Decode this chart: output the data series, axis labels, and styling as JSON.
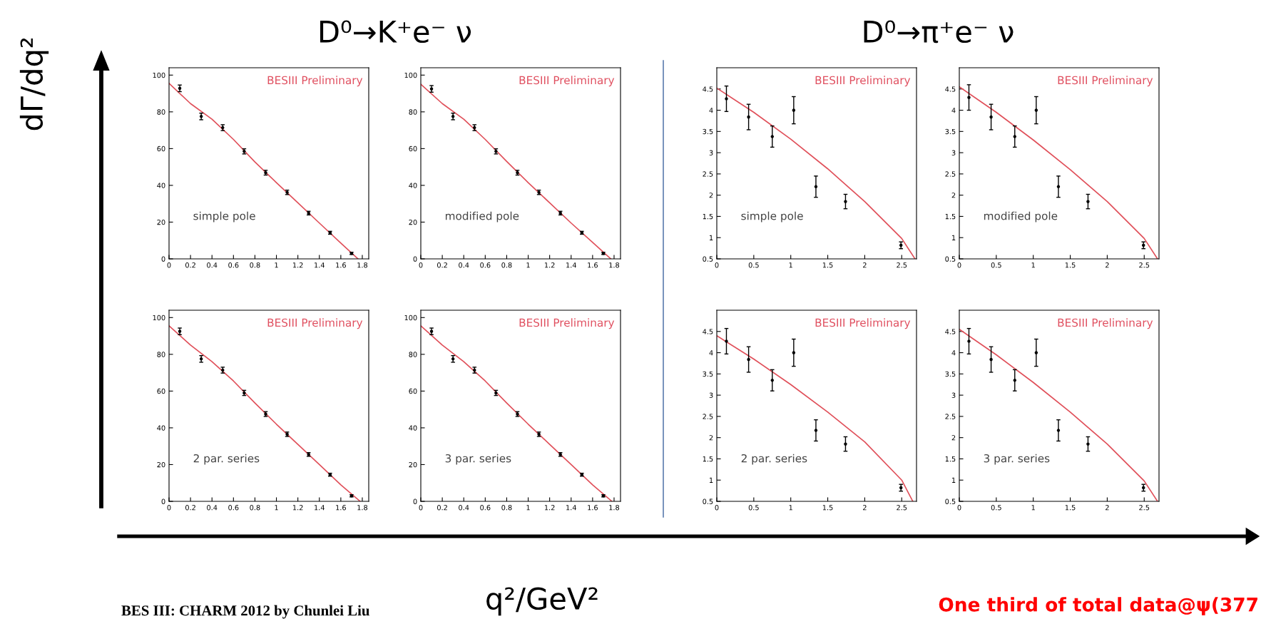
{
  "chart_data": [
    {
      "type": "scatter",
      "title": "D⁰→K⁺e⁻ ν",
      "xlabel": "q²/GeV²",
      "ylabel": "dΓ/dq²",
      "x": [
        0.1,
        0.3,
        0.5,
        0.7,
        0.9,
        1.1,
        1.3,
        1.5,
        1.7
      ],
      "series": [
        {
          "type": "scatter",
          "color": "#000000",
          "marker": "circle",
          "values": [
            92.8,
            77.5,
            71.4,
            58.5,
            46.9,
            36.2,
            24.9,
            14.2,
            3
          ],
          "errors": [
            1.8,
            1.8,
            1.6,
            1.4,
            1.3,
            1.2,
            1,
            0.8,
            0.6
          ]
        },
        {
          "type": "line",
          "color": "#e0505a",
          "x": [
            0,
            0.2,
            0.4,
            0.6,
            0.8,
            1.0,
            1.2,
            1.4,
            1.6,
            1.76
          ],
          "values": [
            95.5,
            84.5,
            76,
            65,
            52.7,
            41.5,
            30.5,
            19.5,
            8.6,
            0
          ]
        }
      ],
      "xlim": [
        0,
        1.86
      ],
      "ylim": [
        0,
        104
      ],
      "xticks": [
        0,
        0.2,
        0.4,
        0.6,
        0.8,
        1,
        1.2,
        1.4,
        1.6,
        1.8
      ],
      "yticks": [
        0,
        20,
        40,
        60,
        80,
        100
      ],
      "annotations": [
        "BESIII Preliminary",
        "simple pole",
        "BES III: CHARM 2012 by Chunlei Liu"
      ]
    },
    {
      "type": "scatter",
      "x": [
        0.1,
        0.3,
        0.5,
        0.7,
        0.9,
        1.1,
        1.3,
        1.5,
        1.7
      ],
      "series": [
        {
          "type": "scatter",
          "color": "#000000",
          "marker": "circle",
          "values": [
            92.5,
            77.5,
            71.4,
            58.5,
            46.9,
            36.2,
            24.9,
            14.2,
            3
          ],
          "errors": [
            1.8,
            1.8,
            1.6,
            1.4,
            1.3,
            1.2,
            1,
            0.8,
            0.6
          ]
        },
        {
          "type": "line",
          "color": "#e0505a",
          "x": [
            0,
            0.2,
            0.4,
            0.6,
            0.8,
            1.0,
            1.2,
            1.4,
            1.6,
            1.77
          ],
          "values": [
            95,
            84.5,
            76,
            65,
            53,
            41.5,
            30.5,
            19.5,
            9,
            0
          ]
        }
      ],
      "xlim": [
        0,
        1.86
      ],
      "ylim": [
        0,
        104
      ],
      "xticks": [
        0,
        0.2,
        0.4,
        0.6,
        0.8,
        1,
        1.2,
        1.4,
        1.6,
        1.8
      ],
      "yticks": [
        0,
        20,
        40,
        60,
        80,
        100
      ],
      "annotations": [
        "BESIII Preliminary",
        "modified pole"
      ]
    },
    {
      "type": "scatter",
      "title": "D⁰→π⁺e⁻ ν",
      "x": [
        0.13,
        0.43,
        0.75,
        1.04,
        1.34,
        1.74,
        2.49
      ],
      "series": [
        {
          "type": "scatter",
          "color": "#000000",
          "marker": "circle",
          "values": [
            4.27,
            3.84,
            3.38,
            4.0,
            2.2,
            1.85,
            0.82
          ],
          "errors": [
            0.3,
            0.3,
            0.25,
            0.32,
            0.25,
            0.17,
            0.08
          ]
        },
        {
          "type": "line",
          "color": "#e0505a",
          "x": [
            0,
            0.5,
            1,
            1.5,
            2,
            2.5,
            2.68
          ],
          "values": [
            4.52,
            3.95,
            3.32,
            2.62,
            1.85,
            0.98,
            0.5
          ]
        }
      ],
      "xlim": [
        0,
        2.7
      ],
      "ylim": [
        0.5,
        5.0
      ],
      "xticks": [
        0,
        0.5,
        1,
        1.5,
        2,
        2.5
      ],
      "yticks": [
        0.5,
        1,
        1.5,
        2,
        2.5,
        3,
        3.5,
        4,
        4.5
      ],
      "annotations": [
        "BESIII Preliminary",
        "simple pole",
        "One third of total data@ψ(377"
      ]
    },
    {
      "type": "scatter",
      "x": [
        0.13,
        0.43,
        0.75,
        1.04,
        1.34,
        1.74,
        2.49
      ],
      "series": [
        {
          "type": "scatter",
          "color": "#000000",
          "marker": "circle",
          "values": [
            4.3,
            3.84,
            3.38,
            4.0,
            2.2,
            1.85,
            0.82
          ],
          "errors": [
            0.3,
            0.3,
            0.25,
            0.32,
            0.25,
            0.17,
            0.08
          ]
        },
        {
          "type": "line",
          "color": "#e0505a",
          "x": [
            0,
            0.5,
            1,
            1.5,
            2,
            2.5,
            2.68
          ],
          "values": [
            4.55,
            3.95,
            3.3,
            2.6,
            1.85,
            0.98,
            0.5
          ]
        }
      ],
      "xlim": [
        0,
        2.7
      ],
      "ylim": [
        0.5,
        5.0
      ],
      "xticks": [
        0,
        0.5,
        1,
        1.5,
        2,
        2.5
      ],
      "yticks": [
        0.5,
        1,
        1.5,
        2,
        2.5,
        3,
        3.5,
        4,
        4.5
      ],
      "annotations": [
        "BESIII Preliminary",
        "modified pole"
      ]
    },
    {
      "type": "scatter",
      "x": [
        0.1,
        0.3,
        0.5,
        0.7,
        0.9,
        1.1,
        1.3,
        1.5,
        1.7
      ],
      "series": [
        {
          "type": "scatter",
          "color": "#000000",
          "marker": "circle",
          "values": [
            92.5,
            77.5,
            71.4,
            59,
            47.5,
            36.5,
            25.5,
            14.5,
            3
          ],
          "errors": [
            1.8,
            1.8,
            1.6,
            1.4,
            1.3,
            1.2,
            1,
            0.8,
            0.6
          ]
        },
        {
          "type": "line",
          "color": "#e0505a",
          "x": [
            0,
            0.2,
            0.4,
            0.6,
            0.8,
            1.0,
            1.2,
            1.4,
            1.6,
            1.78
          ],
          "values": [
            95.5,
            85,
            76,
            65.5,
            53.5,
            42,
            31,
            20,
            9,
            0
          ]
        }
      ],
      "xlim": [
        0,
        1.86
      ],
      "ylim": [
        0,
        104
      ],
      "xticks": [
        0,
        0.2,
        0.4,
        0.6,
        0.8,
        1,
        1.2,
        1.4,
        1.6,
        1.8
      ],
      "yticks": [
        0,
        20,
        40,
        60,
        80,
        100
      ],
      "annotations": [
        "BESIII Preliminary",
        "2 par. series"
      ]
    },
    {
      "type": "scatter",
      "x": [
        0.1,
        0.3,
        0.5,
        0.7,
        0.9,
        1.1,
        1.3,
        1.5,
        1.7
      ],
      "series": [
        {
          "type": "scatter",
          "color": "#000000",
          "marker": "circle",
          "values": [
            92.5,
            77.5,
            71.4,
            59,
            47.5,
            36.5,
            25.5,
            14.5,
            3
          ],
          "errors": [
            1.8,
            1.8,
            1.6,
            1.4,
            1.3,
            1.2,
            1,
            0.8,
            0.6
          ]
        },
        {
          "type": "line",
          "color": "#e0505a",
          "x": [
            0,
            0.2,
            0.4,
            0.6,
            0.8,
            1.0,
            1.2,
            1.4,
            1.6,
            1.78
          ],
          "values": [
            95.5,
            85,
            76,
            65.5,
            53.5,
            42,
            31,
            20,
            9,
            0
          ]
        }
      ],
      "xlim": [
        0,
        1.86
      ],
      "ylim": [
        0,
        104
      ],
      "xticks": [
        0,
        0.2,
        0.4,
        0.6,
        0.8,
        1,
        1.2,
        1.4,
        1.6,
        1.8
      ],
      "yticks": [
        0,
        20,
        40,
        60,
        80,
        100
      ],
      "annotations": [
        "BESIII Preliminary",
        "3 par. series"
      ]
    },
    {
      "type": "scatter",
      "x": [
        0.13,
        0.43,
        0.75,
        1.04,
        1.34,
        1.74,
        2.49
      ],
      "series": [
        {
          "type": "scatter",
          "color": "#000000",
          "marker": "circle",
          "values": [
            4.27,
            3.84,
            3.35,
            4.0,
            2.17,
            1.85,
            0.82
          ],
          "errors": [
            0.3,
            0.3,
            0.25,
            0.32,
            0.25,
            0.17,
            0.08
          ]
        },
        {
          "type": "line",
          "color": "#e0505a",
          "x": [
            0,
            0.5,
            1,
            1.5,
            2,
            2.5,
            2.65
          ],
          "values": [
            4.4,
            3.85,
            3.25,
            2.6,
            1.9,
            1.0,
            0.5
          ]
        }
      ],
      "xlim": [
        0,
        2.7
      ],
      "ylim": [
        0.5,
        5.0
      ],
      "xticks": [
        0,
        0.5,
        1,
        1.5,
        2,
        2.5
      ],
      "yticks": [
        0.5,
        1,
        1.5,
        2,
        2.5,
        3,
        3.5,
        4,
        4.5
      ],
      "annotations": [
        "BESIII Preliminary",
        "2 par. series"
      ]
    },
    {
      "type": "scatter",
      "x": [
        0.13,
        0.43,
        0.75,
        1.04,
        1.34,
        1.74,
        2.49
      ],
      "series": [
        {
          "type": "scatter",
          "color": "#000000",
          "marker": "circle",
          "values": [
            4.27,
            3.84,
            3.35,
            4.0,
            2.17,
            1.85,
            0.82
          ],
          "errors": [
            0.3,
            0.3,
            0.25,
            0.32,
            0.25,
            0.17,
            0.08
          ]
        },
        {
          "type": "line",
          "color": "#e0505a",
          "x": [
            0,
            0.5,
            1,
            1.5,
            2,
            2.5,
            2.68
          ],
          "values": [
            4.55,
            3.95,
            3.3,
            2.6,
            1.85,
            0.98,
            0.5
          ]
        }
      ],
      "xlim": [
        0,
        2.7
      ],
      "ylim": [
        0.5,
        5.0
      ],
      "xticks": [
        0,
        0.5,
        1,
        1.5,
        2,
        2.5
      ],
      "yticks": [
        0.5,
        1,
        1.5,
        2,
        2.5,
        3,
        3.5,
        4,
        4.5
      ],
      "annotations": [
        "BESIII Preliminary",
        "3 par. series"
      ]
    }
  ]
}
